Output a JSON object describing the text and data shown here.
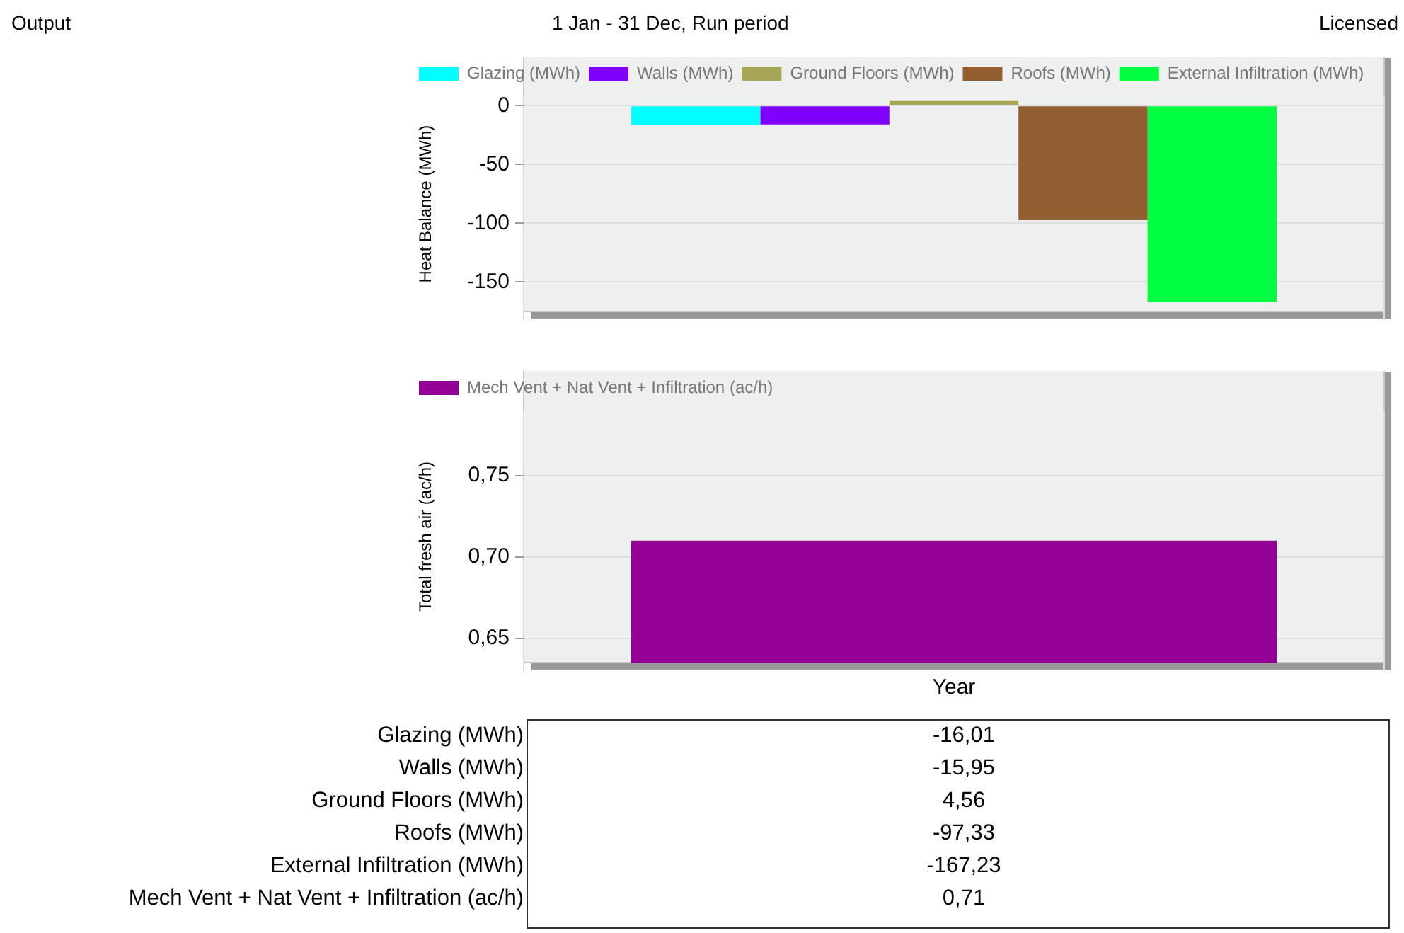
{
  "chart_data": [
    {
      "type": "other",
      "title": "Output",
      "subtitle": "1 Jan - 31 Dec, Run period",
      "annotations": [
        "Licensed"
      ]
    },
    {
      "type": "bar",
      "ylabel": "Heat Balance (MWh)",
      "categories": [
        null
      ],
      "ylim": [
        -175,
        8
      ],
      "yticks": [
        0,
        -50,
        -100,
        -150
      ],
      "grid": true,
      "legend": "top left",
      "series": [
        {
          "name": "Glazing (MWh)",
          "color": "#00ffff",
          "values": [
            -16.01
          ]
        },
        {
          "name": "Walls (MWh)",
          "color": "#8000ff",
          "values": [
            -15.95
          ]
        },
        {
          "name": "Ground Floors (MWh)",
          "color": "#a6a656",
          "values": [
            4.56
          ]
        },
        {
          "name": "Roofs (MWh)",
          "color": "#935f30",
          "values": [
            -97.33
          ]
        },
        {
          "name": "External Infiltration (MWh)",
          "color": "#00ff40",
          "values": [
            -167.23
          ]
        }
      ]
    },
    {
      "type": "bar",
      "ylabel": "Total fresh air (ac/h)",
      "categories": [
        "Year"
      ],
      "ylim": [
        0.635,
        0.79
      ],
      "yticks": [
        {
          "value": 0.65,
          "label": "0,65"
        },
        {
          "value": 0.7,
          "label": "0,70"
        },
        {
          "value": 0.75,
          "label": "0,75"
        }
      ],
      "grid": true,
      "legend": "top left",
      "series": [
        {
          "name": "Mech Vent + Nat Vent + Infiltration (ac/h)",
          "color": "#940094",
          "values": [
            0.71
          ]
        }
      ]
    },
    {
      "type": "other",
      "annotations": [
        "Glazing (MWh)",
        "-16,01",
        "Walls (MWh)",
        "-15,95",
        "Ground Floors (MWh)",
        "4,56",
        "Roofs (MWh)",
        "-97,33",
        "External Infiltration (MWh)",
        "-167,23",
        "Mech Vent + Nat Vent + Infiltration (ac/h)",
        "0,71"
      ]
    }
  ]
}
